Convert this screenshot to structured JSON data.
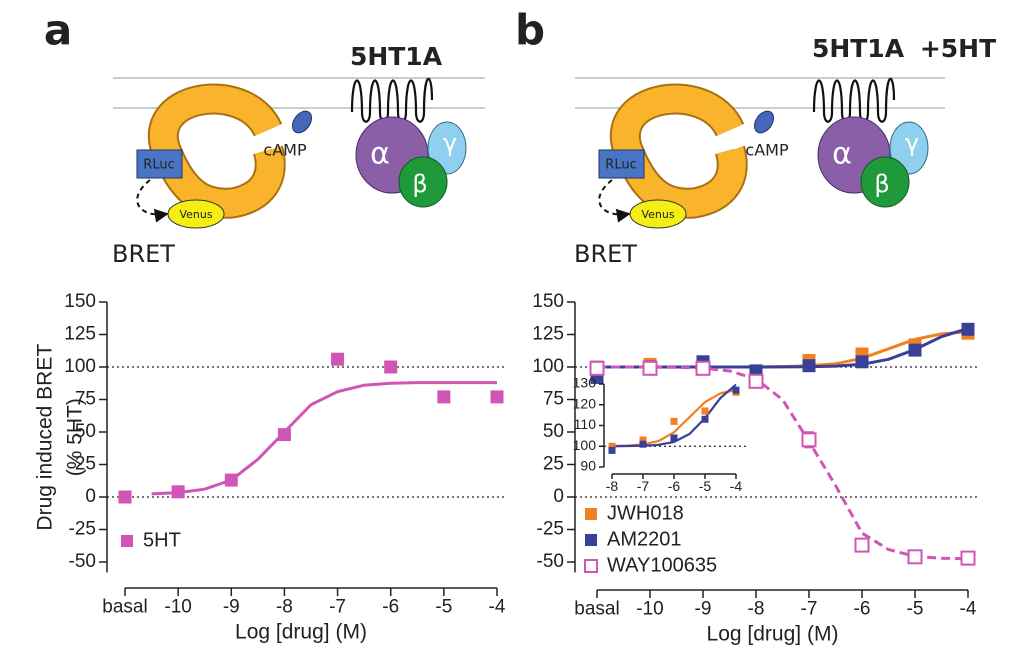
{
  "figure": {
    "panels": [
      {
        "label": "a",
        "receptor": "5HT1A",
        "donor": "RLuc",
        "acceptor": "Venus",
        "messenger": "cAMP",
        "alpha": "α",
        "beta": "β",
        "gamma": "γ",
        "signal": "BRET"
      },
      {
        "label": "b",
        "receptor": "5HT1A",
        "treatment": "+5HT",
        "donor": "RLuc",
        "acceptor": "Venus",
        "messenger": "cAMP",
        "alpha": "α",
        "beta": "β",
        "gamma": "γ",
        "signal": "BRET"
      }
    ]
  },
  "chart_data": [
    {
      "type": "scatter",
      "xlabel": "Log [drug] (M)",
      "ylabel": [
        "Drug induced BRET",
        "(% 5HT)"
      ],
      "xlim": [
        -11,
        -4
      ],
      "xticks": [
        {
          "value": -11,
          "label": "basal"
        },
        -10,
        -9,
        -8,
        -7,
        -6,
        -5,
        -4
      ],
      "ylim": [
        -58,
        150
      ],
      "yticks": [
        -50,
        -25,
        0,
        25,
        50,
        75,
        100,
        125,
        150
      ],
      "hlines": [
        0,
        100
      ],
      "legend": "lower left",
      "series": [
        {
          "name": "5HT",
          "color": "#d055b5",
          "filled": true,
          "x": [
            -11,
            -10,
            -9,
            -8,
            -7,
            -6,
            -5,
            -4
          ],
          "values": [
            0,
            4,
            13,
            48,
            106,
            100,
            77,
            77
          ]
        }
      ],
      "fits": [
        {
          "color": "#d055b5",
          "dashed": false,
          "x": [
            -10.5,
            -10,
            -9.5,
            -9,
            -8.5,
            -8,
            -7.5,
            -7,
            -6.5,
            -6,
            -5.5,
            -5,
            -4.5,
            -4
          ],
          "values": [
            2.4,
            3.4,
            6,
            13,
            29,
            50,
            71,
            81,
            86,
            87.5,
            88,
            88,
            88,
            88
          ]
        }
      ]
    },
    {
      "type": "scatter",
      "xlabel": "Log [drug] (M)",
      "xlim": [
        -11,
        -4
      ],
      "xticks": [
        {
          "value": -11,
          "label": "basal"
        },
        -10,
        -9,
        -8,
        -7,
        -6,
        -5,
        -4
      ],
      "ylim": [
        -58,
        150
      ],
      "yticks": [
        -50,
        -25,
        0,
        25,
        50,
        75,
        100,
        125,
        150
      ],
      "hlines": [
        0,
        100
      ],
      "legend": "lower left",
      "series": [
        {
          "name": "JWH018",
          "color": "#f08020",
          "filled": true,
          "x": [
            -11,
            -10,
            -9,
            -8,
            -7,
            -6,
            -5,
            -4
          ],
          "values": [
            100,
            102,
            100,
            93,
            105,
            110,
            117,
            126
          ]
        },
        {
          "name": "AM2201",
          "color": "#3a3f98",
          "filled": true,
          "x": [
            -11,
            -10,
            -9,
            -8,
            -7,
            -6,
            -5,
            -4
          ],
          "values": [
            92,
            100,
            104,
            97,
            101,
            104,
            113,
            129
          ]
        },
        {
          "name": "WAY100635",
          "color": "#d055b5",
          "filled": false,
          "x": [
            -11,
            -10,
            -9,
            -8,
            -7,
            -6,
            -5,
            -4
          ],
          "values": [
            99,
            99,
            99,
            89,
            44,
            -37,
            -46,
            -47
          ],
          "errors": [
            2,
            2,
            2,
            3,
            6,
            3,
            3,
            2
          ]
        }
      ],
      "fits": [
        {
          "color": "#f08020",
          "dashed": false,
          "x": [
            -11,
            -10.5,
            -10,
            -9.5,
            -9,
            -8.5,
            -8,
            -7.5,
            -7,
            -6.5,
            -6,
            -5.5,
            -5,
            -4.5,
            -4
          ],
          "values": [
            100,
            100,
            100,
            100,
            100,
            100,
            100.1,
            100.3,
            100.9,
            102.5,
            106.7,
            114,
            121.3,
            125.5,
            127.1
          ]
        },
        {
          "color": "#3a3f98",
          "dashed": false,
          "x": [
            -11,
            -10.5,
            -10,
            -9.5,
            -9,
            -8.5,
            -8,
            -7.5,
            -7,
            -6.5,
            -6,
            -5.5,
            -5,
            -4.5,
            -4
          ],
          "values": [
            100,
            100,
            100,
            100,
            100,
            100,
            100,
            100.1,
            100.2,
            100.7,
            102.1,
            105.9,
            113.5,
            123.3,
            129.7
          ]
        },
        {
          "color": "#d055b5",
          "dashed": true,
          "x": [
            -11,
            -10.5,
            -10,
            -9.5,
            -9,
            -8.5,
            -8,
            -7.5,
            -7,
            -6.5,
            -6,
            -5.5,
            -5,
            -4.5,
            -4
          ],
          "values": [
            100,
            100,
            99.9,
            99.7,
            99.1,
            97,
            90.7,
            75,
            42.7,
            8.9,
            -27.8,
            -40.4,
            -45.7,
            -47.1,
            -47.6
          ]
        }
      ]
    },
    {
      "type": "scatter",
      "xlim": [
        -8,
        -4
      ],
      "xticks": [
        -8,
        -7,
        -6,
        -5,
        -4
      ],
      "ylim": [
        90,
        130
      ],
      "yticks": [
        90,
        100,
        110,
        120,
        130
      ],
      "hlines": [
        100
      ],
      "series": [
        {
          "color": "#f08020",
          "filled": true,
          "x": [
            -8,
            -7,
            -6,
            -5,
            -4
          ],
          "values": [
            100,
            103,
            112,
            117,
            126
          ]
        },
        {
          "color": "#3a3f98",
          "filled": true,
          "x": [
            -8,
            -7,
            -6,
            -5,
            -4
          ],
          "values": [
            98,
            101,
            104,
            113,
            127
          ]
        }
      ],
      "fits": [
        {
          "color": "#f08020",
          "dashed": false,
          "x": [
            -8,
            -7.5,
            -7,
            -6.5,
            -6,
            -5.5,
            -5,
            -4.5,
            -4
          ],
          "values": [
            100.1,
            100.3,
            100.9,
            102.5,
            106.7,
            114,
            121.3,
            125.5,
            127.1
          ]
        },
        {
          "color": "#3a3f98",
          "dashed": false,
          "x": [
            -8,
            -7.5,
            -7,
            -6.5,
            -6,
            -5.5,
            -5,
            -4.5,
            -4
          ],
          "values": [
            100,
            100.1,
            100.2,
            100.7,
            102.1,
            105.9,
            113.5,
            123.3,
            129.7
          ]
        }
      ]
    }
  ]
}
